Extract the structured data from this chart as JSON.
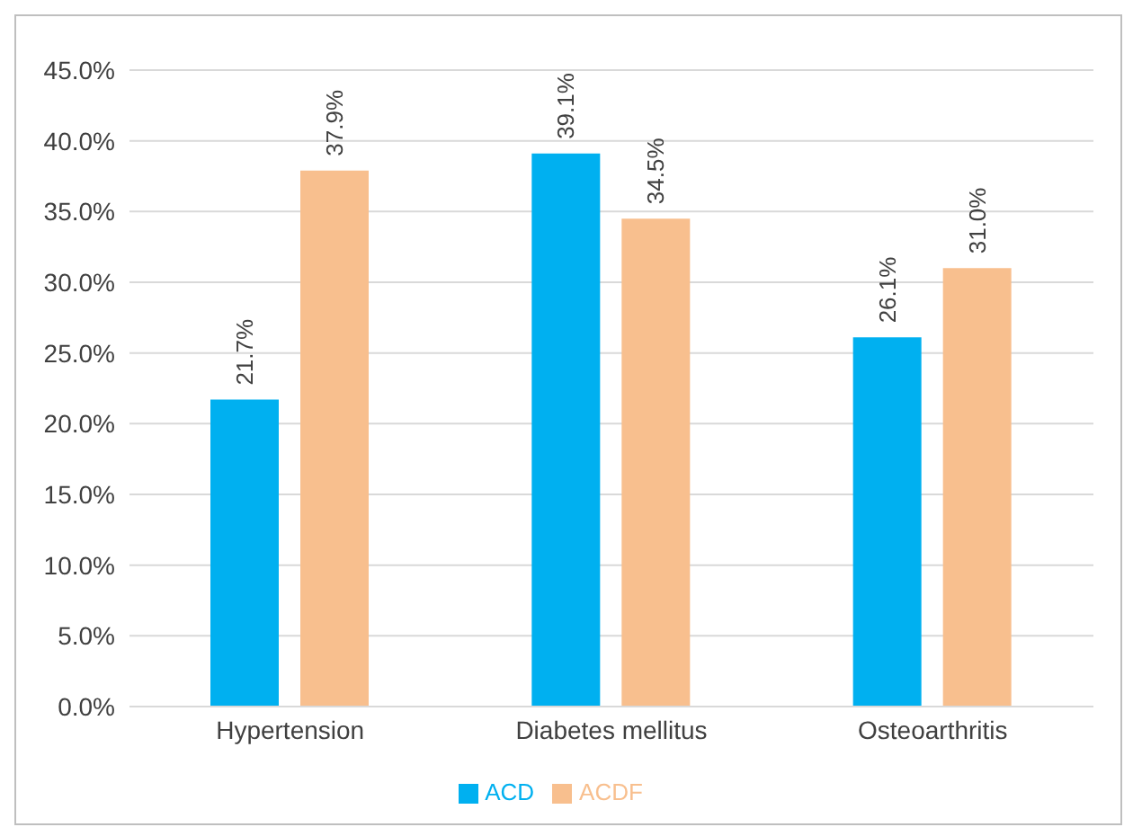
{
  "chart_data": {
    "type": "bar",
    "categories": [
      "Hypertension",
      "Diabetes mellitus",
      "Osteoarthritis"
    ],
    "series": [
      {
        "name": "ACD",
        "color": "#00b0f0",
        "values": [
          21.7,
          39.1,
          26.1
        ],
        "value_labels": [
          "21.7%",
          "39.1%",
          "26.1%"
        ]
      },
      {
        "name": "ACDF",
        "color": "#f8bf8e",
        "values": [
          37.9,
          34.5,
          31.0
        ],
        "value_labels": [
          "37.9%",
          "34.5%",
          "31.0%"
        ]
      }
    ],
    "ylim": [
      0,
      45
    ],
    "yticks": [
      {
        "value": 0,
        "label": "0.0%"
      },
      {
        "value": 5,
        "label": "5.0%"
      },
      {
        "value": 10,
        "label": "10.0%"
      },
      {
        "value": 15,
        "label": "15.0%"
      },
      {
        "value": 20,
        "label": "20.0%"
      },
      {
        "value": 25,
        "label": "25.0%"
      },
      {
        "value": 30,
        "label": "30.0%"
      },
      {
        "value": 35,
        "label": "35.0%"
      },
      {
        "value": 40,
        "label": "40.0%"
      },
      {
        "value": 45,
        "label": "45.0%"
      }
    ],
    "grid": "y",
    "legend": "bottom"
  }
}
